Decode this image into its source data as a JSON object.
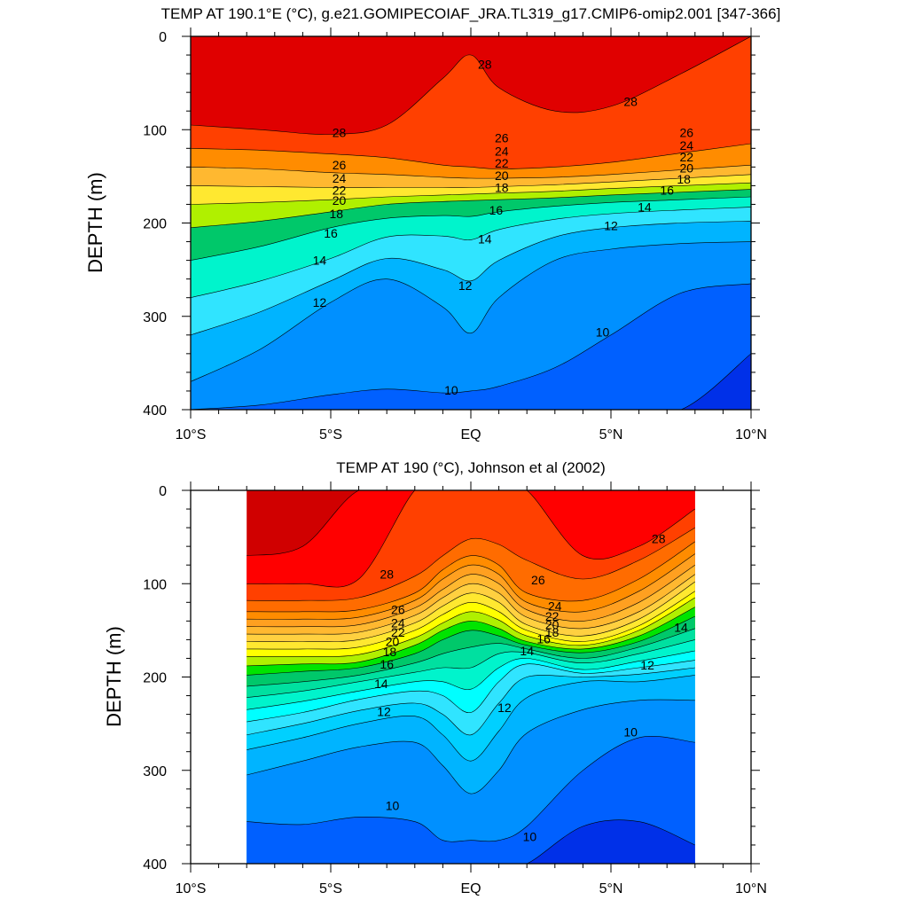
{
  "chart_data": [
    {
      "type": "contour",
      "title": "TEMP AT 190.1°E (°C), g.e21.GOMIPECOIAF_JRA.TL319_g17.CMIP6-omip2.001 [347-366]",
      "xlabel": "",
      "ylabel": "DEPTH (m)",
      "x_ticks": [
        "10°S",
        "5°S",
        "EQ",
        "5°N",
        "10°N"
      ],
      "y_ticks": [
        "0",
        "100",
        "200",
        "300",
        "400"
      ],
      "xlim": [
        -10,
        10
      ],
      "ylim": [
        400,
        0
      ],
      "data_x_range": [
        -10,
        10
      ],
      "contour_interval": 1,
      "levels": [
        29,
        28,
        27,
        26,
        25,
        24,
        23,
        22,
        21,
        20,
        19,
        18,
        17,
        16,
        15,
        14,
        13,
        12,
        11,
        10,
        9
      ],
      "x": [
        -10,
        -7.5,
        -5,
        -3,
        -1,
        0,
        1,
        3,
        5,
        7.5,
        10
      ],
      "isotherm_depths": {
        "28": [
          95,
          100,
          105,
          95,
          45,
          20,
          55,
          80,
          75,
          40,
          0
        ],
        "26": [
          120,
          122,
          126,
          130,
          138,
          140,
          142,
          140,
          135,
          125,
          115
        ],
        "24": [
          140,
          142,
          146,
          148,
          151,
          152,
          152,
          151,
          148,
          143,
          138
        ],
        "22": [
          160,
          161,
          162,
          162,
          162,
          162,
          161,
          159,
          156,
          152,
          148
        ],
        "20": [
          180,
          178,
          175,
          172,
          170,
          169,
          168,
          166,
          163,
          160,
          157
        ],
        "18": [
          205,
          198,
          188,
          180,
          177,
          176,
          175,
          173,
          170,
          167,
          164
        ],
        "16": [
          240,
          225,
          205,
          195,
          192,
          193,
          188,
          182,
          178,
          175,
          172
        ],
        "14": [
          280,
          262,
          238,
          215,
          214,
          218,
          207,
          196,
          190,
          186,
          183
        ],
        "12": [
          320,
          295,
          262,
          238,
          250,
          262,
          240,
          215,
          205,
          200,
          198
        ],
        "11": [
          370,
          335,
          285,
          260,
          290,
          318,
          280,
          240,
          228,
          222,
          220
        ],
        "10": [
          400,
          395,
          384,
          378,
          382,
          380,
          375,
          355,
          320,
          275,
          265
        ],
        "9": [
          400,
          400,
          400,
          400,
          400,
          400,
          400,
          400,
          400,
          400,
          340
        ]
      },
      "contour_labels": [
        {
          "value": "28",
          "x": 0.5,
          "y": 30
        },
        {
          "value": "28",
          "x": 5.7,
          "y": 70
        },
        {
          "value": "28",
          "x": -4.7,
          "y": 103
        },
        {
          "value": "26",
          "x": -4.7,
          "y": 138
        },
        {
          "value": "24",
          "x": -4.7,
          "y": 152
        },
        {
          "value": "22",
          "x": -4.7,
          "y": 165
        },
        {
          "value": "20",
          "x": -4.7,
          "y": 176
        },
        {
          "value": "18",
          "x": -4.8,
          "y": 190
        },
        {
          "value": "16",
          "x": -5.0,
          "y": 211
        },
        {
          "value": "14",
          "x": -5.4,
          "y": 240
        },
        {
          "value": "12",
          "x": -5.4,
          "y": 285
        },
        {
          "value": "26",
          "x": 1.1,
          "y": 109
        },
        {
          "value": "24",
          "x": 1.1,
          "y": 123
        },
        {
          "value": "22",
          "x": 1.1,
          "y": 136
        },
        {
          "value": "20",
          "x": 1.1,
          "y": 149
        },
        {
          "value": "18",
          "x": 1.1,
          "y": 162
        },
        {
          "value": "16",
          "x": 0.9,
          "y": 186
        },
        {
          "value": "14",
          "x": 0.5,
          "y": 217
        },
        {
          "value": "12",
          "x": -0.2,
          "y": 267
        },
        {
          "value": "26",
          "x": 7.7,
          "y": 103
        },
        {
          "value": "24",
          "x": 7.7,
          "y": 117
        },
        {
          "value": "22",
          "x": 7.7,
          "y": 129
        },
        {
          "value": "20",
          "x": 7.7,
          "y": 141
        },
        {
          "value": "18",
          "x": 7.6,
          "y": 153
        },
        {
          "value": "16",
          "x": 7.0,
          "y": 165
        },
        {
          "value": "14",
          "x": 6.2,
          "y": 183
        },
        {
          "value": "12",
          "x": 5.0,
          "y": 203
        },
        {
          "value": "10",
          "x": 4.7,
          "y": 317
        },
        {
          "value": "10",
          "x": -0.7,
          "y": 379
        }
      ]
    },
    {
      "type": "contour",
      "title": "TEMP AT 190 (°C), Johnson et al (2002)",
      "xlabel": "",
      "ylabel": "DEPTH (m)",
      "x_ticks": [
        "10°S",
        "5°S",
        "EQ",
        "5°N",
        "10°N"
      ],
      "y_ticks": [
        "0",
        "100",
        "200",
        "300",
        "400"
      ],
      "xlim": [
        -10,
        10
      ],
      "ylim": [
        400,
        0
      ],
      "data_x_range": [
        -8,
        8
      ],
      "contour_interval": 1,
      "levels": [
        29,
        28,
        27,
        26,
        25,
        24,
        23,
        22,
        21,
        20,
        19,
        18,
        17,
        16,
        15,
        14,
        13,
        12,
        11,
        10,
        9
      ],
      "x": [
        -8,
        -6,
        -4,
        -2,
        -1,
        0,
        1,
        2,
        4,
        6,
        8
      ],
      "isotherm_depths": {
        "29": [
          70,
          60,
          0,
          0,
          0,
          0,
          0,
          0,
          0,
          0,
          0
        ],
        "28": [
          100,
          100,
          95,
          0,
          0,
          0,
          0,
          0,
          70,
          60,
          20
        ],
        "27": [
          118,
          118,
          115,
          92,
          70,
          52,
          58,
          75,
          95,
          75,
          40
        ],
        "26": [
          130,
          130,
          128,
          110,
          85,
          70,
          80,
          110,
          118,
          95,
          55
        ],
        "25": [
          138,
          138,
          136,
          118,
          95,
          80,
          90,
          120,
          130,
          108,
          68
        ],
        "24": [
          146,
          146,
          144,
          126,
          106,
          90,
          100,
          128,
          140,
          120,
          80
        ],
        "23": [
          154,
          154,
          152,
          134,
          115,
          100,
          110,
          136,
          148,
          130,
          90
        ],
        "22": [
          162,
          162,
          160,
          142,
          124,
          110,
          120,
          144,
          156,
          138,
          98
        ],
        "21": [
          170,
          170,
          168,
          150,
          133,
          120,
          130,
          150,
          162,
          145,
          108
        ],
        "20": [
          178,
          178,
          176,
          158,
          142,
          130,
          139,
          156,
          166,
          150,
          115
        ],
        "19": [
          188,
          186,
          184,
          166,
          150,
          140,
          148,
          162,
          170,
          156,
          125
        ],
        "18": [
          198,
          194,
          190,
          175,
          160,
          150,
          156,
          166,
          174,
          162,
          135
        ],
        "17": [
          210,
          205,
          198,
          185,
          175,
          168,
          164,
          170,
          180,
          168,
          148
        ],
        "16": [
          222,
          215,
          205,
          195,
          190,
          190,
          175,
          174,
          185,
          175,
          160
        ],
        "15": [
          235,
          226,
          215,
          205,
          205,
          213,
          190,
          180,
          192,
          183,
          172
        ],
        "14": [
          248,
          238,
          224,
          215,
          220,
          238,
          205,
          186,
          196,
          190,
          182
        ],
        "13": [
          262,
          250,
          236,
          228,
          240,
          262,
          228,
          200,
          200,
          197,
          190
        ],
        "12": [
          278,
          265,
          250,
          242,
          262,
          290,
          258,
          222,
          205,
          205,
          198
        ],
        "11": [
          305,
          290,
          275,
          270,
          295,
          325,
          300,
          260,
          235,
          225,
          225
        ],
        "10": [
          355,
          358,
          350,
          355,
          375,
          375,
          375,
          360,
          300,
          265,
          270
        ],
        "9": [
          400,
          400,
          400,
          400,
          400,
          400,
          400,
          400,
          360,
          355,
          380
        ]
      },
      "contour_labels": [
        {
          "value": "28",
          "x": -3.0,
          "y": 90
        },
        {
          "value": "28",
          "x": 6.7,
          "y": 52
        },
        {
          "value": "26",
          "x": -2.6,
          "y": 128
        },
        {
          "value": "24",
          "x": -2.6,
          "y": 142
        },
        {
          "value": "22",
          "x": -2.6,
          "y": 152
        },
        {
          "value": "20",
          "x": -2.8,
          "y": 162
        },
        {
          "value": "18",
          "x": -2.9,
          "y": 173
        },
        {
          "value": "16",
          "x": -3.0,
          "y": 186
        },
        {
          "value": "14",
          "x": -3.2,
          "y": 207
        },
        {
          "value": "12",
          "x": -3.1,
          "y": 237
        },
        {
          "value": "26",
          "x": 2.4,
          "y": 96
        },
        {
          "value": "24",
          "x": 3.0,
          "y": 124
        },
        {
          "value": "22",
          "x": 2.9,
          "y": 135
        },
        {
          "value": "20",
          "x": 2.9,
          "y": 144
        },
        {
          "value": "18",
          "x": 2.9,
          "y": 152
        },
        {
          "value": "16",
          "x": 2.6,
          "y": 159
        },
        {
          "value": "14",
          "x": 2.0,
          "y": 172
        },
        {
          "value": "12",
          "x": 1.2,
          "y": 233
        },
        {
          "value": "12",
          "x": 6.3,
          "y": 187
        },
        {
          "value": "14",
          "x": 7.5,
          "y": 147
        },
        {
          "value": "10",
          "x": 5.7,
          "y": 259
        },
        {
          "value": "10",
          "x": -2.8,
          "y": 338
        },
        {
          "value": "10",
          "x": 2.1,
          "y": 371
        }
      ]
    }
  ]
}
